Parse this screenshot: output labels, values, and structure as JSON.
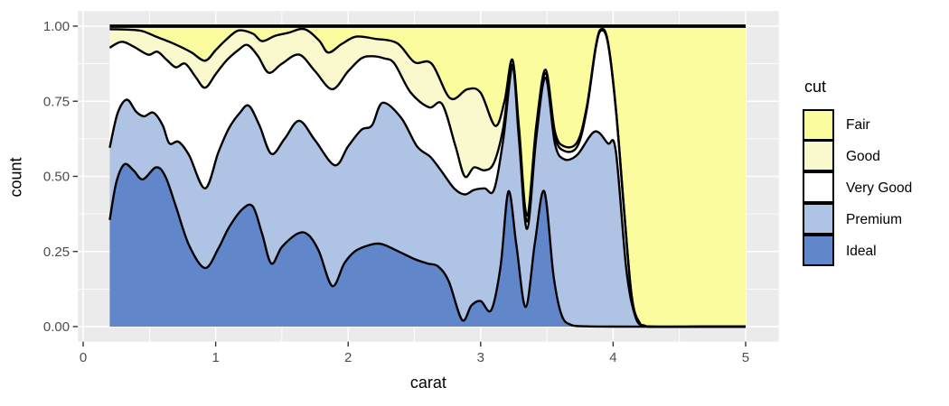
{
  "chart_data": {
    "type": "area",
    "subtype": "stacked-density-position-fill",
    "title": "",
    "xlabel": "carat",
    "ylabel": "count",
    "legend_title": "cut",
    "x_ticks": {
      "values": [
        0,
        1,
        2,
        3,
        4,
        5
      ],
      "labels": [
        "0",
        "1",
        "2",
        "3",
        "4",
        "5"
      ]
    },
    "y_ticks": {
      "values": [
        0,
        0.25,
        0.5,
        0.75,
        1
      ],
      "labels": [
        "0.00",
        "0.25",
        "0.50",
        "0.75",
        "1.00"
      ]
    },
    "x_minor": [
      0.5,
      1.5,
      2.5,
      3.5,
      4.5
    ],
    "y_minor": [
      0.125,
      0.375,
      0.625,
      0.875
    ],
    "xlim": [
      -0.0405,
      5.2505
    ],
    "ylim": [
      -0.05,
      1.05
    ],
    "x_data_range": [
      0.2,
      5.0
    ],
    "grid": "on",
    "panel_bg": "#EBEBEB",
    "grid_color": "#FFFFFF",
    "outline_color": "#000000",
    "tick_text_color": "#4D4D4D",
    "tick_mark_color": "#333333",
    "legend": {
      "title": "cut",
      "position": "right",
      "entries": [
        {
          "label": "Fair",
          "color": "#FBFC9D"
        },
        {
          "label": "Good",
          "color": "#FAF9CE"
        },
        {
          "label": "Very Good",
          "color": "#FFFFFF"
        },
        {
          "label": "Premium",
          "color": "#AFC3E4"
        },
        {
          "label": "Ideal",
          "color": "#6286CA"
        }
      ]
    },
    "stack_order_bottom_to_top": [
      "Ideal",
      "Premium",
      "Very Good",
      "Good",
      "Fair"
    ],
    "boundaries_note": "cumulative proportion (position=fill); each array is [carat, cumulative fraction] of the TOP edge of that band",
    "boundaries": {
      "ideal_top": [
        [
          0.2,
          0.355
        ],
        [
          0.25,
          0.48
        ],
        [
          0.31,
          0.54
        ],
        [
          0.38,
          0.52
        ],
        [
          0.45,
          0.49
        ],
        [
          0.55,
          0.53
        ],
        [
          0.62,
          0.5
        ],
        [
          0.7,
          0.4
        ],
        [
          0.8,
          0.27
        ],
        [
          0.92,
          0.195
        ],
        [
          1.02,
          0.26
        ],
        [
          1.1,
          0.33
        ],
        [
          1.2,
          0.39
        ],
        [
          1.28,
          0.4
        ],
        [
          1.35,
          0.31
        ],
        [
          1.42,
          0.21
        ],
        [
          1.5,
          0.265
        ],
        [
          1.62,
          0.31
        ],
        [
          1.7,
          0.305
        ],
        [
          1.78,
          0.25
        ],
        [
          1.88,
          0.135
        ],
        [
          1.97,
          0.21
        ],
        [
          2.05,
          0.25
        ],
        [
          2.15,
          0.27
        ],
        [
          2.25,
          0.275
        ],
        [
          2.38,
          0.25
        ],
        [
          2.5,
          0.225
        ],
        [
          2.6,
          0.21
        ],
        [
          2.68,
          0.2
        ],
        [
          2.76,
          0.15
        ],
        [
          2.86,
          0.022
        ],
        [
          2.93,
          0.07
        ],
        [
          3.0,
          0.085
        ],
        [
          3.08,
          0.055
        ],
        [
          3.15,
          0.2
        ],
        [
          3.21,
          0.45
        ],
        [
          3.27,
          0.27
        ],
        [
          3.34,
          0.065
        ],
        [
          3.41,
          0.28
        ],
        [
          3.48,
          0.45
        ],
        [
          3.55,
          0.17
        ],
        [
          3.61,
          0.04
        ],
        [
          3.68,
          0.006
        ],
        [
          3.8,
          0.001
        ],
        [
          4.0,
          0
        ],
        [
          4.5,
          0
        ],
        [
          5.0,
          0
        ]
      ],
      "premium_top": [
        [
          0.2,
          0.595
        ],
        [
          0.26,
          0.71
        ],
        [
          0.33,
          0.755
        ],
        [
          0.4,
          0.715
        ],
        [
          0.46,
          0.7
        ],
        [
          0.53,
          0.712
        ],
        [
          0.6,
          0.67
        ],
        [
          0.65,
          0.61
        ],
        [
          0.72,
          0.615
        ],
        [
          0.8,
          0.57
        ],
        [
          0.92,
          0.46
        ],
        [
          1.02,
          0.58
        ],
        [
          1.1,
          0.66
        ],
        [
          1.18,
          0.71
        ],
        [
          1.25,
          0.735
        ],
        [
          1.33,
          0.67
        ],
        [
          1.42,
          0.575
        ],
        [
          1.52,
          0.625
        ],
        [
          1.63,
          0.685
        ],
        [
          1.75,
          0.62
        ],
        [
          1.9,
          0.537
        ],
        [
          2.0,
          0.6
        ],
        [
          2.1,
          0.655
        ],
        [
          2.18,
          0.67
        ],
        [
          2.26,
          0.745
        ],
        [
          2.4,
          0.695
        ],
        [
          2.52,
          0.6
        ],
        [
          2.62,
          0.565
        ],
        [
          2.7,
          0.52
        ],
        [
          2.8,
          0.46
        ],
        [
          2.88,
          0.44
        ],
        [
          2.95,
          0.455
        ],
        [
          3.03,
          0.46
        ],
        [
          3.1,
          0.455
        ],
        [
          3.17,
          0.62
        ],
        [
          3.24,
          0.858
        ],
        [
          3.29,
          0.62
        ],
        [
          3.35,
          0.325
        ],
        [
          3.42,
          0.63
        ],
        [
          3.49,
          0.828
        ],
        [
          3.56,
          0.61
        ],
        [
          3.63,
          0.557
        ],
        [
          3.73,
          0.572
        ],
        [
          3.86,
          0.649
        ],
        [
          3.96,
          0.61
        ],
        [
          4.02,
          0.585
        ],
        [
          4.1,
          0.19
        ],
        [
          4.17,
          0.03
        ],
        [
          4.24,
          0.003
        ],
        [
          4.32,
          0
        ],
        [
          4.7,
          0
        ],
        [
          5.0,
          0
        ]
      ],
      "very_good_top": [
        [
          0.2,
          0.928
        ],
        [
          0.29,
          0.948
        ],
        [
          0.38,
          0.932
        ],
        [
          0.49,
          0.905
        ],
        [
          0.56,
          0.915
        ],
        [
          0.63,
          0.888
        ],
        [
          0.7,
          0.863
        ],
        [
          0.77,
          0.875
        ],
        [
          0.85,
          0.83
        ],
        [
          0.92,
          0.795
        ],
        [
          1.0,
          0.84
        ],
        [
          1.08,
          0.885
        ],
        [
          1.17,
          0.92
        ],
        [
          1.24,
          0.937
        ],
        [
          1.32,
          0.9
        ],
        [
          1.4,
          0.845
        ],
        [
          1.5,
          0.875
        ],
        [
          1.63,
          0.905
        ],
        [
          1.75,
          0.85
        ],
        [
          1.88,
          0.79
        ],
        [
          2.0,
          0.85
        ],
        [
          2.1,
          0.893
        ],
        [
          2.18,
          0.9
        ],
        [
          2.27,
          0.893
        ],
        [
          2.35,
          0.875
        ],
        [
          2.47,
          0.78
        ],
        [
          2.61,
          0.73
        ],
        [
          2.71,
          0.74
        ],
        [
          2.81,
          0.6
        ],
        [
          2.88,
          0.5
        ],
        [
          2.95,
          0.53
        ],
        [
          3.03,
          0.52
        ],
        [
          3.1,
          0.545
        ],
        [
          3.17,
          0.66
        ],
        [
          3.24,
          0.872
        ],
        [
          3.29,
          0.64
        ],
        [
          3.35,
          0.35
        ],
        [
          3.42,
          0.655
        ],
        [
          3.49,
          0.843
        ],
        [
          3.56,
          0.635
        ],
        [
          3.63,
          0.585
        ],
        [
          3.73,
          0.6
        ],
        [
          3.8,
          0.72
        ],
        [
          3.87,
          0.93
        ],
        [
          3.91,
          0.985
        ],
        [
          3.96,
          0.945
        ],
        [
          4.02,
          0.726
        ],
        [
          4.08,
          0.4
        ],
        [
          4.14,
          0.1
        ],
        [
          4.2,
          0.012
        ],
        [
          4.28,
          0
        ],
        [
          4.7,
          0
        ],
        [
          5.0,
          0
        ]
      ],
      "good_top": [
        [
          0.2,
          0.99
        ],
        [
          0.35,
          0.988
        ],
        [
          0.45,
          0.983
        ],
        [
          0.55,
          0.965
        ],
        [
          0.65,
          0.948
        ],
        [
          0.75,
          0.928
        ],
        [
          0.82,
          0.912
        ],
        [
          0.92,
          0.885
        ],
        [
          1.0,
          0.92
        ],
        [
          1.08,
          0.955
        ],
        [
          1.17,
          0.985
        ],
        [
          1.28,
          0.975
        ],
        [
          1.35,
          0.95
        ],
        [
          1.45,
          0.968
        ],
        [
          1.55,
          0.978
        ],
        [
          1.67,
          0.99
        ],
        [
          1.78,
          0.952
        ],
        [
          1.85,
          0.912
        ],
        [
          1.95,
          0.94
        ],
        [
          2.06,
          0.965
        ],
        [
          2.2,
          0.958
        ],
        [
          2.37,
          0.943
        ],
        [
          2.5,
          0.88
        ],
        [
          2.63,
          0.875
        ],
        [
          2.77,
          0.76
        ],
        [
          2.9,
          0.79
        ],
        [
          3.0,
          0.778
        ],
        [
          3.11,
          0.668
        ],
        [
          3.18,
          0.75
        ],
        [
          3.24,
          0.888
        ],
        [
          3.29,
          0.66
        ],
        [
          3.35,
          0.37
        ],
        [
          3.42,
          0.67
        ],
        [
          3.49,
          0.855
        ],
        [
          3.56,
          0.65
        ],
        [
          3.63,
          0.6
        ],
        [
          3.73,
          0.615
        ],
        [
          3.8,
          0.73
        ],
        [
          3.87,
          0.935
        ],
        [
          3.91,
          0.99
        ],
        [
          3.96,
          0.95
        ],
        [
          4.02,
          0.73
        ],
        [
          4.08,
          0.405
        ],
        [
          4.14,
          0.103
        ],
        [
          4.2,
          0.013
        ],
        [
          4.28,
          0
        ],
        [
          4.7,
          0
        ],
        [
          5.0,
          0
        ]
      ],
      "fair_top": [
        [
          0.2,
          1.0
        ],
        [
          5.0,
          1.0
        ]
      ]
    }
  }
}
